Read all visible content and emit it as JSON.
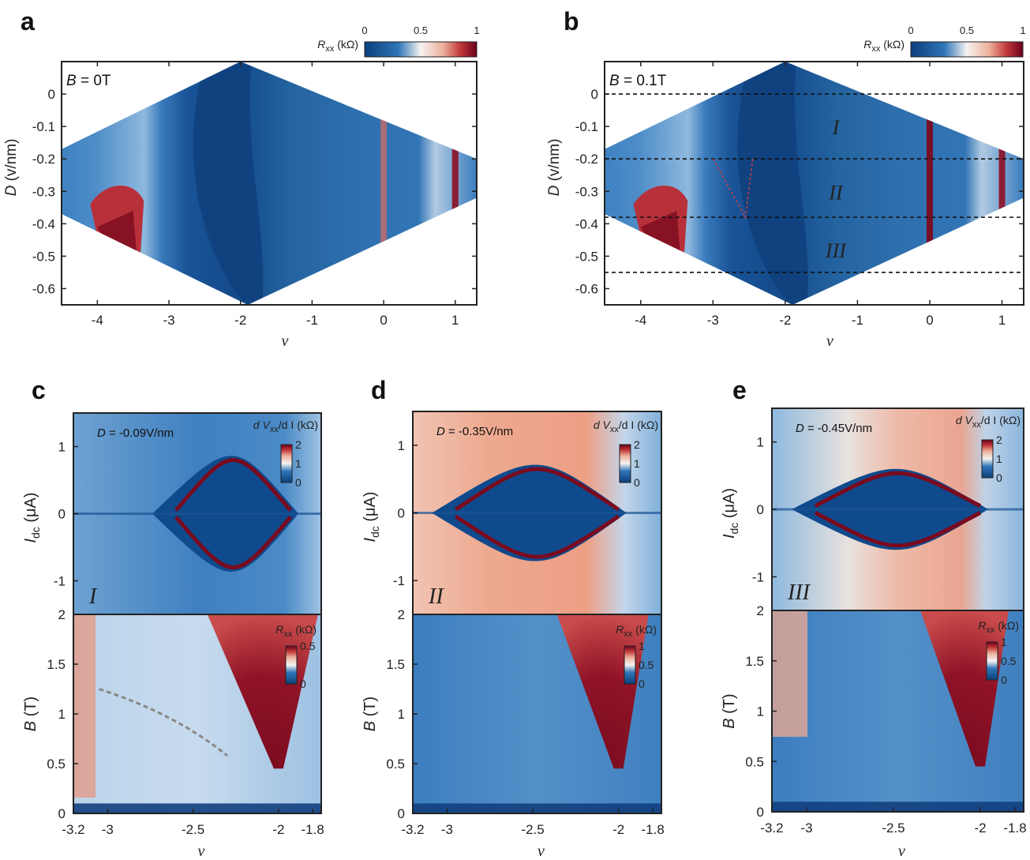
{
  "colors": {
    "deep_blue": "#0b3f7a",
    "mid_blue": "#2f75b8",
    "light_blue": "#8db9dc",
    "white": "#f5f3f1",
    "light_red": "#ecb09b",
    "red": "#c43b3c",
    "deep_red": "#6b0019"
  },
  "chart_data": [
    {
      "id": "a",
      "type": "heatmap",
      "panel_label": "a",
      "annotation": {
        "var": "B",
        "value": "= 0T"
      },
      "xlabel": "ν",
      "ylabel": "D",
      "ylabel_unit": "(v/nm)",
      "xlim": [
        -4.5,
        1.3
      ],
      "ylim": [
        -0.65,
        0.1
      ],
      "x_ticks": [
        "-4",
        "-3",
        "-2",
        "-1",
        "0",
        "1"
      ],
      "y_ticks": [
        "0",
        "-0.1",
        "-0.2",
        "-0.3",
        "-0.4",
        "-0.5",
        "-0.6"
      ],
      "colorbar": {
        "label": "R",
        "label_sub": "xx",
        "unit": "(kΩ)",
        "ticks": [
          "0",
          "0.5",
          "1"
        ],
        "range": [
          0,
          1
        ]
      }
    },
    {
      "id": "b",
      "type": "heatmap",
      "panel_label": "b",
      "annotation": {
        "var": "B",
        "value": "= 0.1T"
      },
      "xlabel": "ν",
      "ylabel": "D",
      "ylabel_unit": "(v/nm)",
      "xlim": [
        -4.5,
        1.3
      ],
      "ylim": [
        -0.65,
        0.1
      ],
      "x_ticks": [
        "-4",
        "-3",
        "-2",
        "-1",
        "0",
        "1"
      ],
      "y_ticks": [
        "0",
        "-0.1",
        "-0.2",
        "-0.3",
        "-0.4",
        "-0.5",
        "-0.6"
      ],
      "colorbar": {
        "label": "R",
        "label_sub": "xx",
        "unit": "(kΩ)",
        "ticks": [
          "0",
          "0.5",
          "1"
        ],
        "range": [
          0,
          1
        ]
      },
      "dashed_lines_D": [
        0,
        -0.2,
        -0.38,
        -0.55
      ],
      "region_labels": [
        {
          "text": "I",
          "D": -0.1
        },
        {
          "text": "II",
          "D": -0.3
        },
        {
          "text": "III",
          "D": -0.48
        }
      ]
    },
    {
      "id": "c",
      "type": "heatmap",
      "panel_label": "c",
      "region_label": "I",
      "annotation": {
        "var": "D",
        "value": "= -0.09V/nm"
      },
      "xlabel": "ν",
      "xlim": [
        -3.2,
        -1.75
      ],
      "x_ticks": [
        "-3.2",
        "-3",
        "-2.5",
        "-2",
        "-1.8"
      ],
      "top": {
        "ylabel": "I",
        "ylabel_sub": "dc",
        "ylabel_unit": "(μA)",
        "y_ticks": [
          "1",
          "0",
          "-1"
        ],
        "ylim": [
          -1.5,
          1.5
        ],
        "colorbar": {
          "label": "d V",
          "label_sub": "xx",
          "label_tail": "/d I (kΩ)",
          "ticks": [
            "2",
            "1",
            "0"
          ],
          "range": [
            0,
            2
          ]
        }
      },
      "bottom": {
        "ylabel": "B",
        "ylabel_unit": "(T)",
        "y_ticks": [
          "2",
          "1.5",
          "1",
          "0.5",
          "0"
        ],
        "ylim": [
          0,
          2
        ],
        "colorbar": {
          "label": "R",
          "label_sub": "xx",
          "unit": "(kΩ)",
          "ticks": [
            "0.5",
            "0"
          ],
          "range": [
            0,
            0.5
          ]
        }
      }
    },
    {
      "id": "d",
      "type": "heatmap",
      "panel_label": "d",
      "region_label": "II",
      "annotation": {
        "var": "D",
        "value": "= -0.35V/nm"
      },
      "xlabel": "ν",
      "xlim": [
        -3.2,
        -1.75
      ],
      "x_ticks": [
        "-3.2",
        "-3",
        "-2.5",
        "-2",
        "-1.8"
      ],
      "top": {
        "ylabel": "I",
        "ylabel_sub": "dc",
        "ylabel_unit": "(μA)",
        "y_ticks": [
          "1",
          "0",
          "-1"
        ],
        "ylim": [
          -1.5,
          1.5
        ],
        "colorbar": {
          "label": "d V",
          "label_sub": "xx",
          "label_tail": "/d I (kΩ)",
          "ticks": [
            "2",
            "1",
            "0"
          ],
          "range": [
            0,
            2
          ]
        }
      },
      "bottom": {
        "ylabel": "B",
        "ylabel_unit": "(T)",
        "y_ticks": [
          "2",
          "1.5",
          "1",
          "0.5",
          "0"
        ],
        "ylim": [
          0,
          2
        ],
        "colorbar": {
          "label": "R",
          "label_sub": "xx",
          "unit": "(kΩ)",
          "ticks": [
            "1",
            "0.5",
            "0"
          ],
          "range": [
            0,
            1
          ]
        }
      }
    },
    {
      "id": "e",
      "type": "heatmap",
      "panel_label": "e",
      "region_label": "III",
      "annotation": {
        "var": "D",
        "value": "= -0.45V/nm"
      },
      "xlabel": "ν",
      "xlim": [
        -3.2,
        -1.75
      ],
      "x_ticks": [
        "-3.2",
        "-3",
        "-2.5",
        "-2",
        "-1.8"
      ],
      "top": {
        "ylabel": "I",
        "ylabel_sub": "dc",
        "ylabel_unit": "(μA)",
        "y_ticks": [
          "1",
          "0",
          "-1"
        ],
        "ylim": [
          -1.5,
          1.5
        ],
        "colorbar": {
          "label": "d V",
          "label_sub": "xx",
          "label_tail": "/d I (kΩ)",
          "ticks": [
            "2",
            "1",
            "0"
          ],
          "range": [
            0,
            2
          ]
        }
      },
      "bottom": {
        "ylabel": "B",
        "ylabel_unit": "(T)",
        "y_ticks": [
          "2",
          "1.5",
          "1",
          "0.5",
          "0"
        ],
        "ylim": [
          0,
          2
        ],
        "colorbar": {
          "label": "R",
          "label_sub": "xx",
          "unit": "(kΩ)",
          "ticks": [
            "1",
            "0.5",
            "0"
          ],
          "range": [
            0,
            1
          ]
        }
      }
    }
  ]
}
